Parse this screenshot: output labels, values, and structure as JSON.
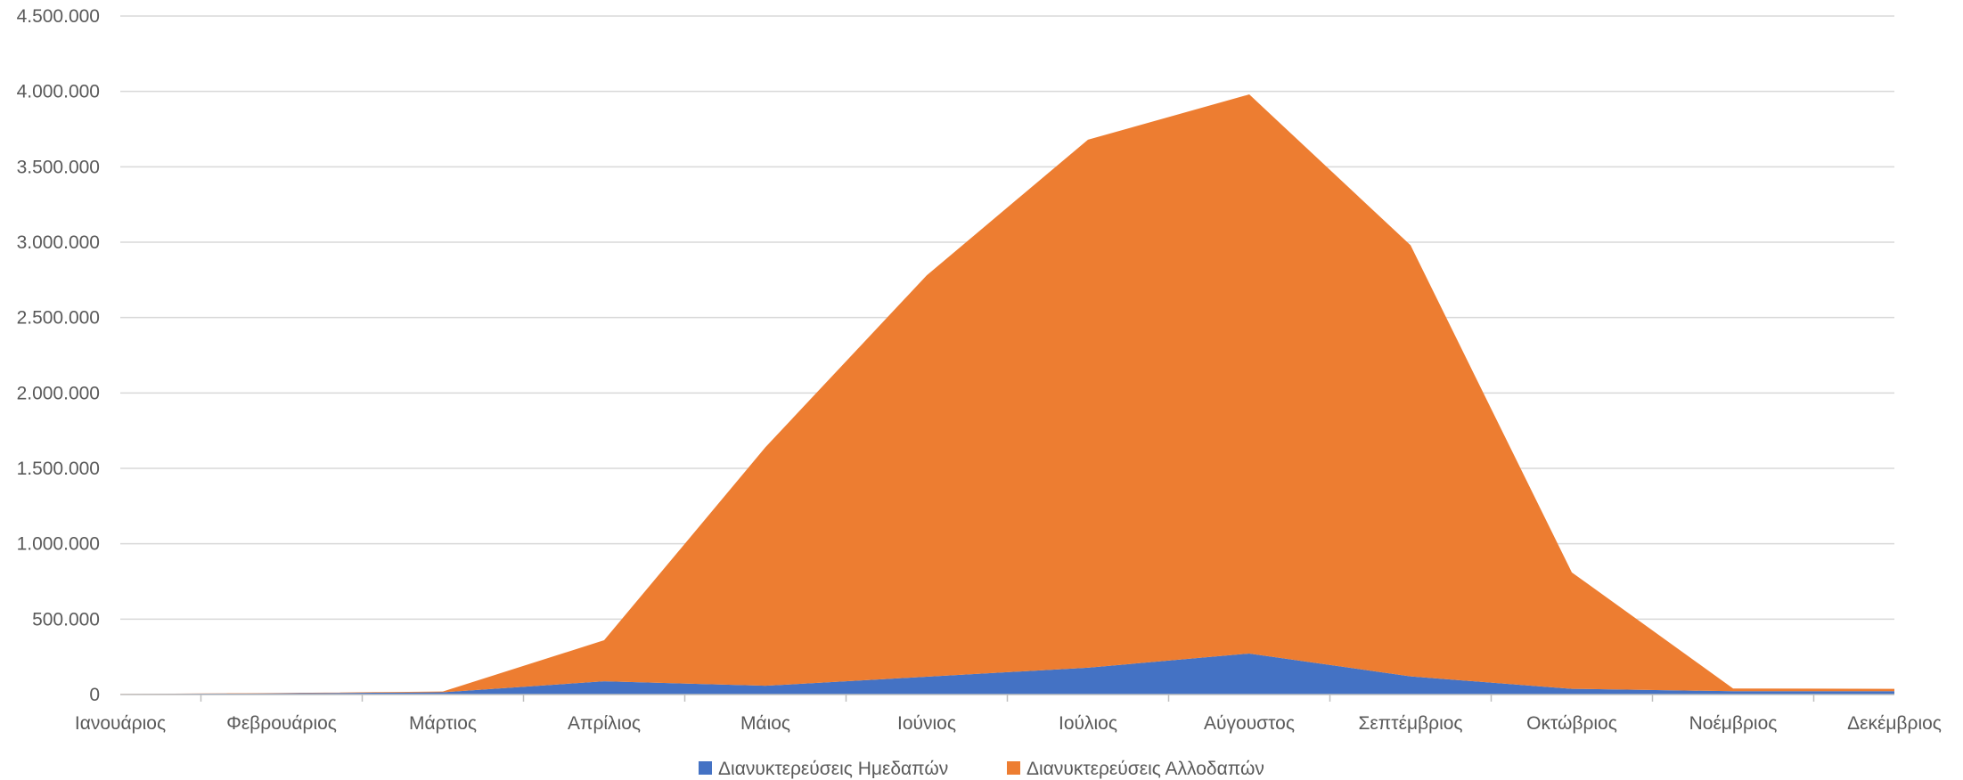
{
  "chart_data": {
    "type": "area",
    "stacked": true,
    "categories": [
      "Ιανουάριος",
      "Φεβρουάριος",
      "Μάρτιος",
      "Απρίλιος",
      "Μάιος",
      "Ιούνιος",
      "Ιούλιος",
      "Αύγουστος",
      "Σεπτέμβριος",
      "Οκτώβριος",
      "Νοέμβριος",
      "Δεκέμβριος"
    ],
    "series": [
      {
        "name": "Διανυκτερεύσεις Ημεδαπών",
        "color": "#4472C4",
        "values": [
          3000,
          8000,
          15000,
          88000,
          58000,
          118000,
          178000,
          272000,
          120000,
          38000,
          22000,
          22000
        ]
      },
      {
        "name": "Διανυκτερεύσεις Αλλοδαπών",
        "color": "#ED7D31",
        "values": [
          1000,
          2000,
          5000,
          272000,
          1582000,
          2662000,
          3502000,
          3708000,
          2860000,
          772000,
          18000,
          16000
        ]
      }
    ],
    "yticks": [
      "0",
      "500.000",
      "1.000.000",
      "1.500.000",
      "2.000.000",
      "2.500.000",
      "3.000.000",
      "3.500.000",
      "4.000.000",
      "4.500.000"
    ],
    "ylim": [
      0,
      4500000
    ],
    "grid": true,
    "legend_position": "bottom"
  }
}
